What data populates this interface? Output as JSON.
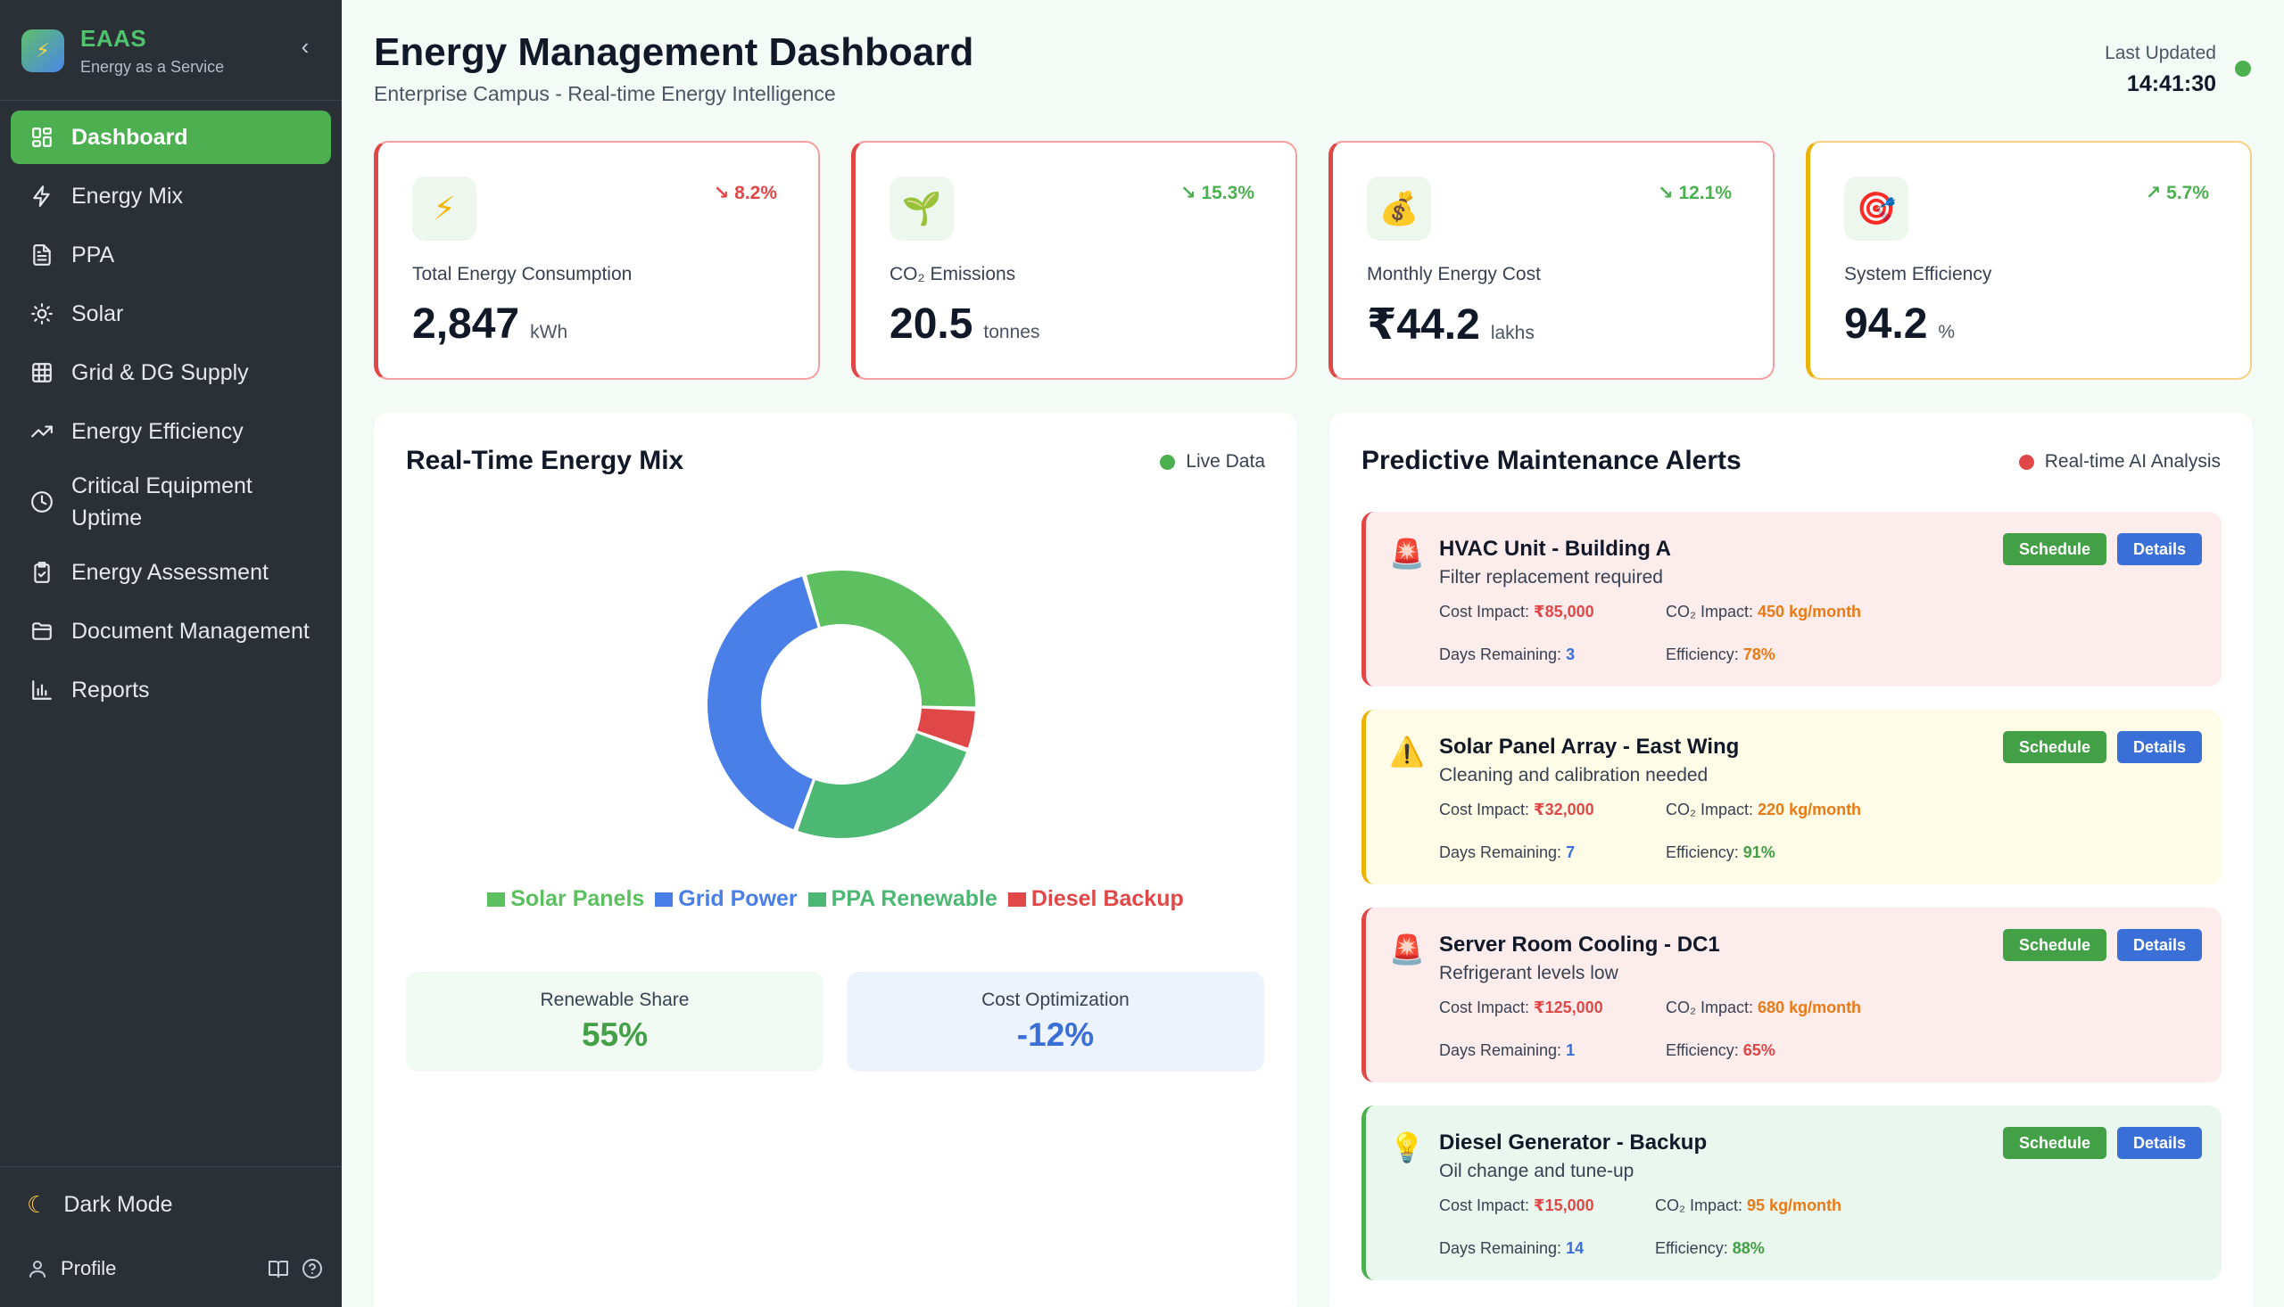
{
  "brand": {
    "name": "EAAS",
    "tagline": "Energy as a Service"
  },
  "nav": [
    {
      "label": "Dashboard",
      "icon": "grid-icon",
      "active": true
    },
    {
      "label": "Energy Mix",
      "icon": "bolt-icon"
    },
    {
      "label": "PPA",
      "icon": "document-icon"
    },
    {
      "label": "Solar",
      "icon": "sun-icon"
    },
    {
      "label": "Grid & DG Supply",
      "icon": "table-icon"
    },
    {
      "label": "Energy Efficiency",
      "icon": "trend-icon"
    },
    {
      "label": "Critical Equipment Uptime",
      "icon": "clock-icon"
    },
    {
      "label": "Energy Assessment",
      "icon": "clipboard-icon"
    },
    {
      "label": "Document Management",
      "icon": "folder-icon"
    },
    {
      "label": "Reports",
      "icon": "bar-chart-icon"
    }
  ],
  "sidebar_footer": {
    "dark_mode": "Dark Mode",
    "profile": "Profile"
  },
  "header": {
    "title": "Energy Management Dashboard",
    "subtitle": "Enterprise Campus - Real-time Energy Intelligence",
    "last_updated_label": "Last Updated",
    "last_updated_time": "14:41:30"
  },
  "kpis": [
    {
      "icon": "lightning-icon",
      "trend": "↘ 8.2%",
      "label": "Total Energy Consumption",
      "value": "2,847",
      "unit": "kWh"
    },
    {
      "icon": "seedling-icon",
      "trend": "↘ 15.3%",
      "label": "CO₂ Emissions",
      "value": "20.5",
      "unit": "tonnes"
    },
    {
      "icon": "money-bag-icon",
      "trend": "↘ 12.1%",
      "label": "Monthly Energy Cost",
      "value": "₹44.2",
      "unit": "lakhs"
    },
    {
      "icon": "target-icon",
      "trend": "↗ 5.7%",
      "label": "System Efficiency",
      "value": "94.2",
      "unit": "%"
    }
  ],
  "energy_mix": {
    "title": "Real-Time Energy Mix",
    "status": "Live Data",
    "legend": [
      "Solar Panels",
      "Grid Power",
      "PPA Renewable",
      "Diesel Backup"
    ],
    "colors": {
      "solar": "#5cbf60",
      "grid": "#4a7fe8",
      "ppa": "#4cb873",
      "diesel": "#e04848"
    },
    "renewable_label": "Renewable Share",
    "renewable_value": "55%",
    "cost_label": "Cost Optimization",
    "cost_value": "-12%"
  },
  "chart_data": {
    "type": "pie",
    "categories": [
      "Solar Panels",
      "Grid Power",
      "PPA Renewable",
      "Diesel Backup"
    ],
    "values": [
      30,
      40,
      25,
      5
    ],
    "title": "Real-Time Energy Mix"
  },
  "alerts": {
    "title": "Predictive Maintenance Alerts",
    "status": "Real-time AI Analysis",
    "schedule_label": "Schedule",
    "details_label": "Details",
    "cost_label": "Cost Impact:",
    "co2_label": "CO₂ Impact:",
    "days_label": "Days Remaining:",
    "efficiency_label": "Efficiency:",
    "items": [
      {
        "severity": "red",
        "icon": "siren-icon",
        "title": "HVAC Unit - Building A",
        "desc": "Filter replacement required",
        "cost": "₹85,000",
        "co2": "450 kg/month",
        "days": "3",
        "efficiency": "78%"
      },
      {
        "severity": "yellow",
        "icon": "warning-icon",
        "title": "Solar Panel Array - East Wing",
        "desc": "Cleaning and calibration needed",
        "cost": "₹32,000",
        "co2": "220 kg/month",
        "days": "7",
        "efficiency": "91%"
      },
      {
        "severity": "red",
        "icon": "siren-icon",
        "title": "Server Room Cooling - DC1",
        "desc": "Refrigerant levels low",
        "cost": "₹125,000",
        "co2": "680 kg/month",
        "days": "1",
        "efficiency": "65%"
      },
      {
        "severity": "green",
        "icon": "lightbulb-icon",
        "title": "Diesel Generator - Backup",
        "desc": "Oil change and tune-up",
        "cost": "₹15,000",
        "co2": "95 kg/month",
        "days": "14",
        "efficiency": "88%"
      }
    ]
  }
}
